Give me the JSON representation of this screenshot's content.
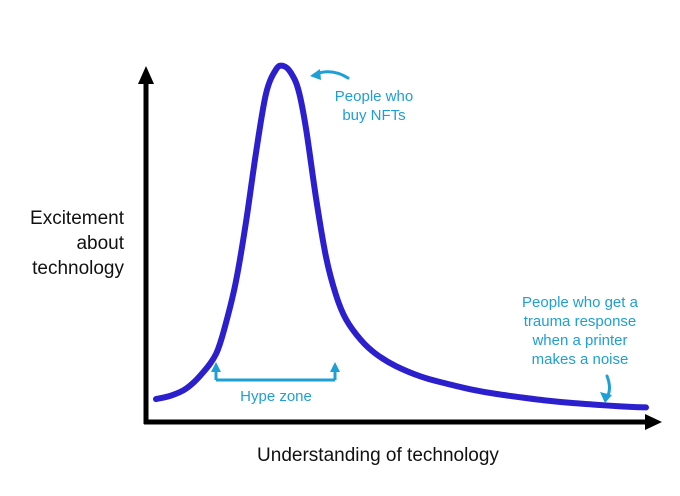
{
  "chart_data": {
    "type": "line",
    "xlabel": "Understanding of technology",
    "ylabel_lines": [
      "Excitement",
      "about",
      "technology"
    ],
    "x_ticks": false,
    "y_ticks": false,
    "grid": false,
    "xlim": [
      0,
      100
    ],
    "ylim": [
      0,
      100
    ],
    "series": [
      {
        "color": "#2b1fce",
        "x": [
          2,
          5,
          8,
          11,
          14,
          16,
          18,
          20,
          22,
          24,
          26,
          27.5,
          29,
          30.5,
          32,
          34,
          36,
          38,
          40,
          43,
          46,
          50,
          55,
          60,
          65,
          70,
          75,
          80,
          85,
          90,
          95,
          100
        ],
        "y": [
          4,
          5,
          7,
          11,
          17,
          26,
          38,
          55,
          75,
          92,
          99,
          100,
          98,
          93,
          82,
          62,
          45,
          34,
          27,
          21,
          17,
          13.5,
          10.5,
          8.5,
          6.8,
          5.5,
          4.5,
          3.6,
          2.9,
          2.4,
          1.9,
          1.6
        ]
      }
    ],
    "annotations": [
      {
        "id": "nft",
        "lines": [
          "People who",
          "buy NFTs"
        ]
      },
      {
        "id": "printer",
        "lines": [
          "People who get a",
          "trauma response",
          "when a printer",
          "makes a noise"
        ]
      },
      {
        "id": "hype",
        "lines": [
          "Hype zone"
        ]
      }
    ],
    "colors": {
      "curve": "#2b1fce",
      "annotation": "#1e9fd6",
      "axis": "#000000"
    }
  }
}
